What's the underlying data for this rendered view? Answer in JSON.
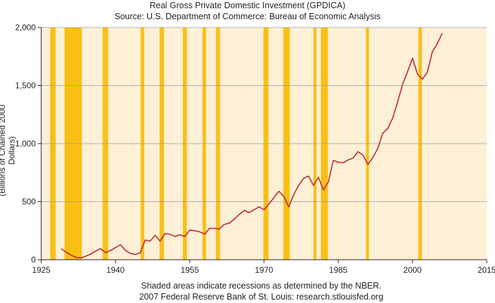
{
  "title": "Real Gross Private Domestic Investment (GPDICA)",
  "subtitle": "Source: U.S. Department of Commerce: Bureau of Economic Analysis",
  "footer_note": "Shaded areas indicate recessions as determined by the NBER.",
  "footer_source": "2007 Federal Reserve Bank of St. Louis: research.stlouisfed.org",
  "colors": {
    "background": "#fdf0d6",
    "recession": "#fbbf14",
    "line": "#c0282d",
    "grid": "#9a9a9a"
  },
  "chart_data": {
    "type": "line",
    "title": "Real Gross Private Domestic Investment (GPDICA)",
    "subtitle": "Source: U.S. Department of Commerce: Bureau of Economic Analysis",
    "xlabel": "",
    "ylabel": "(Billions of Chained 2000 Dollars)",
    "xlim": [
      1925,
      2015
    ],
    "ylim": [
      0,
      2000
    ],
    "x_ticks": [
      1925,
      1940,
      1955,
      1970,
      1985,
      2000,
      2015
    ],
    "y_ticks": [
      0,
      500,
      1000,
      1500,
      2000
    ],
    "y_tick_labels": [
      "0",
      "500",
      "1,000",
      "1,500",
      "2,000"
    ],
    "grid": "horizontal",
    "recession_shading": [
      [
        1926.8,
        1927.9
      ],
      [
        1929.7,
        1933.2
      ],
      [
        1937.4,
        1938.5
      ],
      [
        1945.1,
        1945.8
      ],
      [
        1948.9,
        1949.8
      ],
      [
        1953.6,
        1954.4
      ],
      [
        1957.6,
        1958.3
      ],
      [
        1960.3,
        1961.1
      ],
      [
        1969.9,
        1970.9
      ],
      [
        1973.9,
        1975.2
      ],
      [
        1980.0,
        1980.6
      ],
      [
        1981.5,
        1982.9
      ],
      [
        1990.6,
        1991.2
      ],
      [
        2001.2,
        2001.9
      ]
    ],
    "series": [
      {
        "x": [
          1929,
          1930,
          1931,
          1932,
          1933,
          1934,
          1935,
          1936,
          1937,
          1938,
          1939,
          1940,
          1941,
          1942,
          1943,
          1944,
          1945,
          1946,
          1947,
          1948,
          1949,
          1950,
          1951,
          1952,
          1953,
          1954,
          1955,
          1956,
          1957,
          1958,
          1959,
          1960,
          1961,
          1962,
          1963,
          1964,
          1965,
          1966,
          1967,
          1968,
          1969,
          1970,
          1971,
          1972,
          1973,
          1974,
          1975,
          1976,
          1977,
          1978,
          1979,
          1980,
          1981,
          1982,
          1983,
          1984,
          1985,
          1986,
          1987,
          1988,
          1989,
          1990,
          1991,
          1992,
          1993,
          1994,
          1995,
          1996,
          1997,
          1998,
          1999,
          2000,
          2001,
          2002,
          2003,
          2004,
          2005,
          2006
        ],
        "values": [
          95,
          65,
          40,
          20,
          15,
          30,
          50,
          75,
          95,
          60,
          80,
          105,
          130,
          80,
          55,
          45,
          60,
          170,
          160,
          210,
          160,
          225,
          220,
          200,
          215,
          200,
          255,
          250,
          240,
          220,
          270,
          270,
          265,
          305,
          315,
          350,
          390,
          425,
          405,
          430,
          455,
          430,
          480,
          535,
          590,
          545,
          455,
          560,
          640,
          700,
          720,
          640,
          710,
          600,
          670,
          855,
          840,
          835,
          860,
          875,
          930,
          900,
          820,
          880,
          960,
          1090,
          1130,
          1220,
          1360,
          1510,
          1620,
          1735,
          1600,
          1555,
          1615,
          1790,
          1860,
          1950
        ]
      }
    ]
  }
}
